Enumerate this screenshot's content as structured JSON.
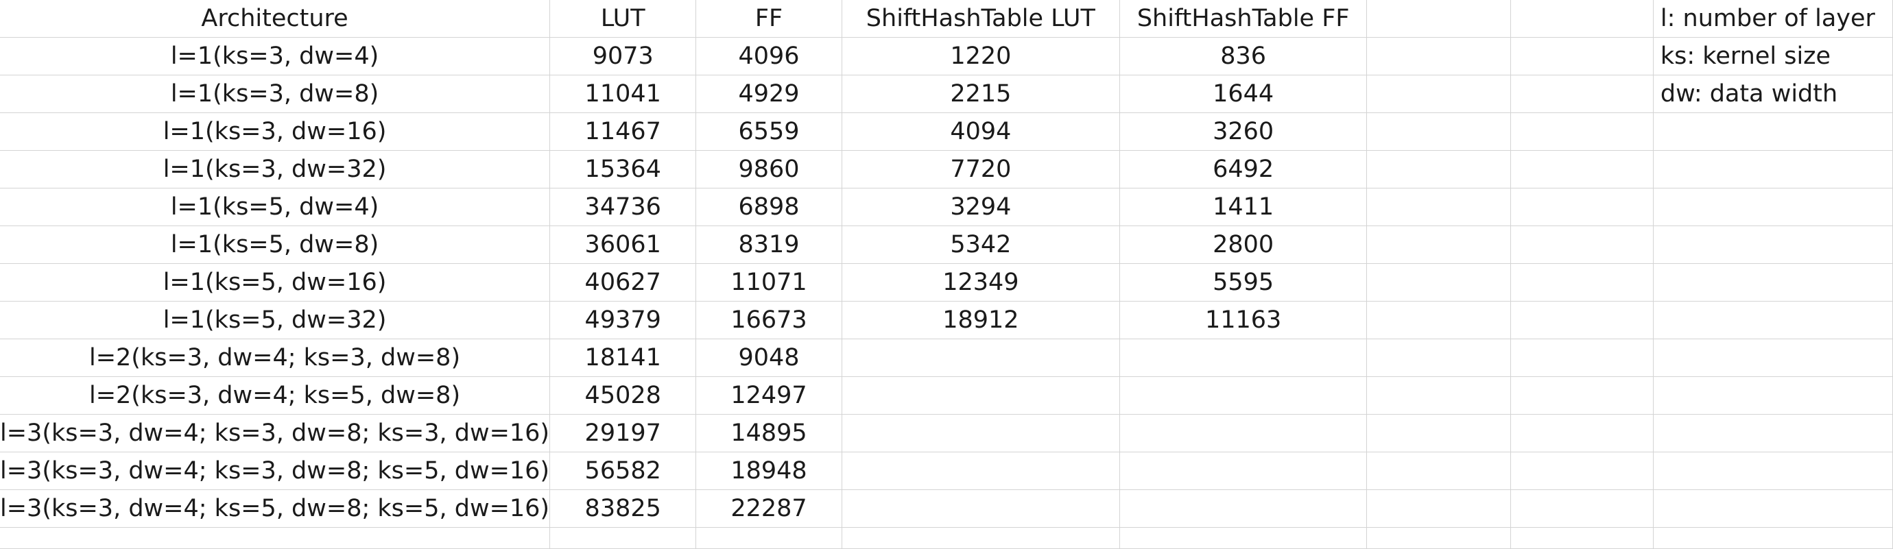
{
  "headers": [
    "Architecture",
    "LUT",
    "FF",
    "ShiftHashTable LUT",
    "ShiftHashTable FF",
    "",
    ""
  ],
  "rows": [
    [
      "l=1(ks=3, dw=4)",
      "9073",
      "4096",
      "1220",
      "836"
    ],
    [
      "l=1(ks=3, dw=8)",
      "11041",
      "4929",
      "2215",
      "1644"
    ],
    [
      "l=1(ks=3, dw=16)",
      "11467",
      "6559",
      "4094",
      "3260"
    ],
    [
      "l=1(ks=3, dw=32)",
      "15364",
      "9860",
      "7720",
      "6492"
    ],
    [
      "l=1(ks=5, dw=4)",
      "34736",
      "6898",
      "3294",
      "1411"
    ],
    [
      "l=1(ks=5, dw=8)",
      "36061",
      "8319",
      "5342",
      "2800"
    ],
    [
      "l=1(ks=5, dw=16)",
      "40627",
      "11071",
      "12349",
      "5595"
    ],
    [
      "l=1(ks=5, dw=32)",
      "49379",
      "16673",
      "18912",
      "11163"
    ],
    [
      "l=2(ks=3, dw=4; ks=3, dw=8)",
      "18141",
      "9048",
      "",
      ""
    ],
    [
      "l=2(ks=3, dw=4; ks=5, dw=8)",
      "45028",
      "12497",
      "",
      ""
    ],
    [
      "l=3(ks=3, dw=4; ks=3, dw=8; ks=3, dw=16)",
      "29197",
      "14895",
      "",
      ""
    ],
    [
      "l=3(ks=3, dw=4; ks=3, dw=8; ks=5, dw=16)",
      "56582",
      "18948",
      "",
      ""
    ],
    [
      "l=3(ks=3, dw=4; ks=5, dw=8; ks=5, dw=16)",
      "83825",
      "22287",
      "",
      ""
    ]
  ],
  "notes": [
    "l: number of layer",
    "ks: kernel size",
    "dw: data width"
  ]
}
